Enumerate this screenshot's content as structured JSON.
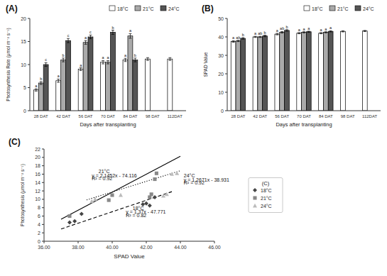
{
  "chart_data": [
    {
      "type": "bar",
      "title": "(A)",
      "x_label": "Days after transplanting",
      "y_label": "Photosynthesis Rate (μmol m⁻² s⁻¹)",
      "categories": [
        "28 DAT",
        "42 DAT",
        "56 DAT",
        "70 DAT",
        "84 DAT",
        "98 DAT",
        "112DAT"
      ],
      "ylim": [
        0,
        20
      ],
      "yticks": [
        0,
        5,
        10,
        15,
        20
      ],
      "grid": false,
      "legend": "upper right",
      "series": [
        {
          "name": "18°C",
          "color": "#ffffff",
          "values": [
            4.5,
            6.5,
            9.0,
            10.5,
            11.0,
            11.2,
            11.2
          ],
          "errors": [
            0.25,
            0.35,
            0.3,
            0.35,
            0.35,
            0.3,
            0.3
          ],
          "labels": [
            "a",
            "a",
            "a",
            "a",
            "a",
            null,
            null
          ]
        },
        {
          "name": "21°C",
          "color": "#aaaaaa",
          "values": [
            6.0,
            11.0,
            14.8,
            10.5,
            16.2,
            null,
            null
          ],
          "errors": [
            0.3,
            0.4,
            0.4,
            0.35,
            0.5,
            null,
            null
          ],
          "labels": [
            "b",
            "b",
            "a",
            "a",
            "a",
            null,
            null
          ]
        },
        {
          "name": "24°C",
          "color": "#555555",
          "values": [
            10.0,
            15.2,
            16.0,
            17.0,
            11.0,
            null,
            null
          ],
          "errors": [
            0.4,
            0.45,
            0.4,
            0.45,
            0.4,
            null,
            null
          ],
          "labels": [
            "c",
            "c",
            "c",
            "b",
            "b",
            null,
            null
          ]
        }
      ]
    },
    {
      "type": "bar",
      "title": "(B)",
      "x_label": "Days after transplanting",
      "y_label": "SPAD Value",
      "categories": [
        "28 DAT",
        "42 DAT",
        "56 DAT",
        "70 DAT",
        "84 DAT",
        "98 DAT",
        "112DAT"
      ],
      "ylim": [
        0,
        50
      ],
      "yticks": [
        0,
        10,
        20,
        30,
        40,
        50
      ],
      "grid": false,
      "legend": "upper right",
      "series": [
        {
          "name": "18°C",
          "color": "#ffffff",
          "values": [
            37.5,
            40.0,
            41.5,
            42.0,
            42.0,
            43.0,
            43.2
          ],
          "errors": [
            0.4,
            0.3,
            0.4,
            0.3,
            0.3,
            0.3,
            0.3
          ],
          "labels": [
            "a",
            "a",
            "a",
            "a",
            "a",
            null,
            null
          ]
        },
        {
          "name": "21°C",
          "color": "#aaaaaa",
          "values": [
            37.8,
            40.0,
            42.5,
            42.5,
            42.5,
            null,
            null
          ],
          "errors": [
            0.35,
            0.3,
            0.4,
            0.3,
            0.3,
            null,
            null
          ],
          "labels": [
            "ab",
            "ab",
            "ab",
            "a",
            "a",
            null,
            null
          ]
        },
        {
          "name": "24°C",
          "color": "#555555",
          "values": [
            39.2,
            40.5,
            43.5,
            42.8,
            43.0,
            null,
            null
          ],
          "errors": [
            0.4,
            0.4,
            0.4,
            0.3,
            0.3,
            null,
            null
          ],
          "labels": [
            "b",
            "b",
            "b",
            "a",
            "a",
            null,
            null
          ]
        }
      ]
    },
    {
      "type": "scatter",
      "title": "(C)",
      "x_label": "SPAD Value",
      "y_label": "Photosynthesis (μmol m⁻² s⁻¹)",
      "xlim": [
        36.0,
        46.0
      ],
      "ylim": [
        0,
        22
      ],
      "xticks": [
        {
          "value": 36,
          "label": "36.00"
        },
        {
          "value": 38,
          "label": "38.00"
        },
        {
          "value": 40,
          "label": "40.00"
        },
        {
          "value": 42,
          "label": "42.00"
        },
        {
          "value": 44,
          "label": "44.00"
        },
        {
          "value": 46,
          "label": "46.00"
        }
      ],
      "yticks": [
        0,
        2,
        4,
        6,
        8,
        10,
        12,
        14,
        16,
        18,
        20,
        22
      ],
      "grid": false,
      "legend": "right",
      "legend_title": "(C)",
      "series": [
        {
          "name": "18°C",
          "type": "scatter",
          "color": "#444444",
          "marker": "diamond",
          "x": [
            37.5,
            37.8,
            38.2,
            41.8,
            42.0,
            42.2,
            42.5
          ],
          "values": [
            4.5,
            4.8,
            6.5,
            8.8,
            9.0,
            8.5,
            10.5
          ]
        },
        {
          "name": "21°C",
          "type": "scatter",
          "color": "#888888",
          "marker": "square",
          "x": [
            37.5,
            39.8,
            40.0,
            42.2,
            42.3,
            42.5,
            42.6
          ],
          "values": [
            6.0,
            9.8,
            11.0,
            10.5,
            11.2,
            14.8,
            16.2
          ]
        },
        {
          "name": "24°C",
          "type": "scatter",
          "color": "#bbbbbb",
          "marker": "triangle",
          "x": [
            38.8,
            39.0,
            40.5,
            43.0,
            43.2,
            43.5,
            43.8
          ],
          "values": [
            9.5,
            10.0,
            11.0,
            10.8,
            11.2,
            16.0,
            16.2
          ]
        },
        {
          "type": "line",
          "color": "#000000",
          "line_style": "dashed",
          "x": [
            37.0,
            43.5
          ],
          "values": [
            2.919,
            11.824
          ]
        },
        {
          "type": "line",
          "color": "#000000",
          "line_style": "solid",
          "x": [
            37.0,
            44.0
          ],
          "values": [
            5.2564,
            20.2728
          ]
        },
        {
          "type": "line",
          "color": "#000000",
          "line_style": "dotted",
          "x": [
            38.5,
            44.0
          ],
          "values": [
            9.85235,
            16.8214
          ]
        }
      ],
      "annotations": [
        {
          "text": "21°C",
          "x": 39.2,
          "y": 16.2
        },
        {
          "text": "y = 2.1452x - 74.116",
          "x": 38.8,
          "y": 15.3
        },
        {
          "text": "R² = 0.92",
          "x": 38.8,
          "y": 14.5
        },
        {
          "text": "18°C",
          "x": 41.2,
          "y": 7.5
        },
        {
          "text": "y = 1.37x - 47.771",
          "x": 40.8,
          "y": 6.6
        },
        {
          "text": "R² = 0.82",
          "x": 40.8,
          "y": 5.8
        },
        {
          "text": "24°C",
          "x": 44.2,
          "y": 15.2
        },
        {
          "text": "y = 1.2671x - 38.931",
          "x": 44.2,
          "y": 14.3
        },
        {
          "text": "R² = 0.92",
          "x": 44.2,
          "y": 13.5
        }
      ]
    }
  ]
}
